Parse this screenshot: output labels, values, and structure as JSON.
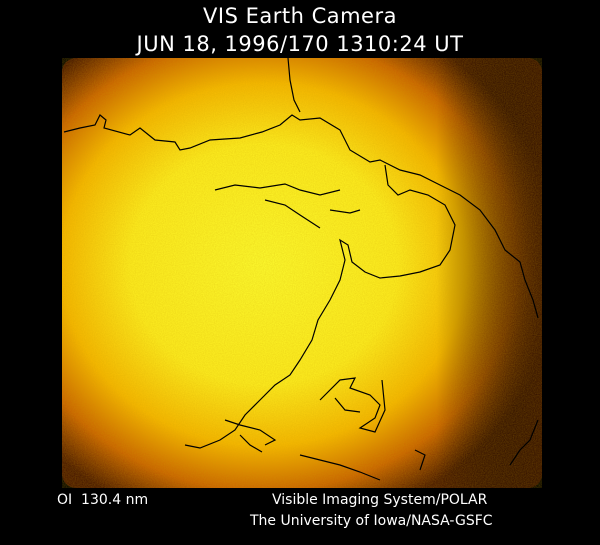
{
  "header": {
    "title": "VIS Earth Camera",
    "timestamp": "JUN 18, 1996/170 1310:24 UT"
  },
  "footer": {
    "filter": "OI  130.4 nm",
    "credit_line1": "Visible Imaging System/POLAR",
    "credit_line2": "The University of Iowa/NASA-GSFC"
  }
}
